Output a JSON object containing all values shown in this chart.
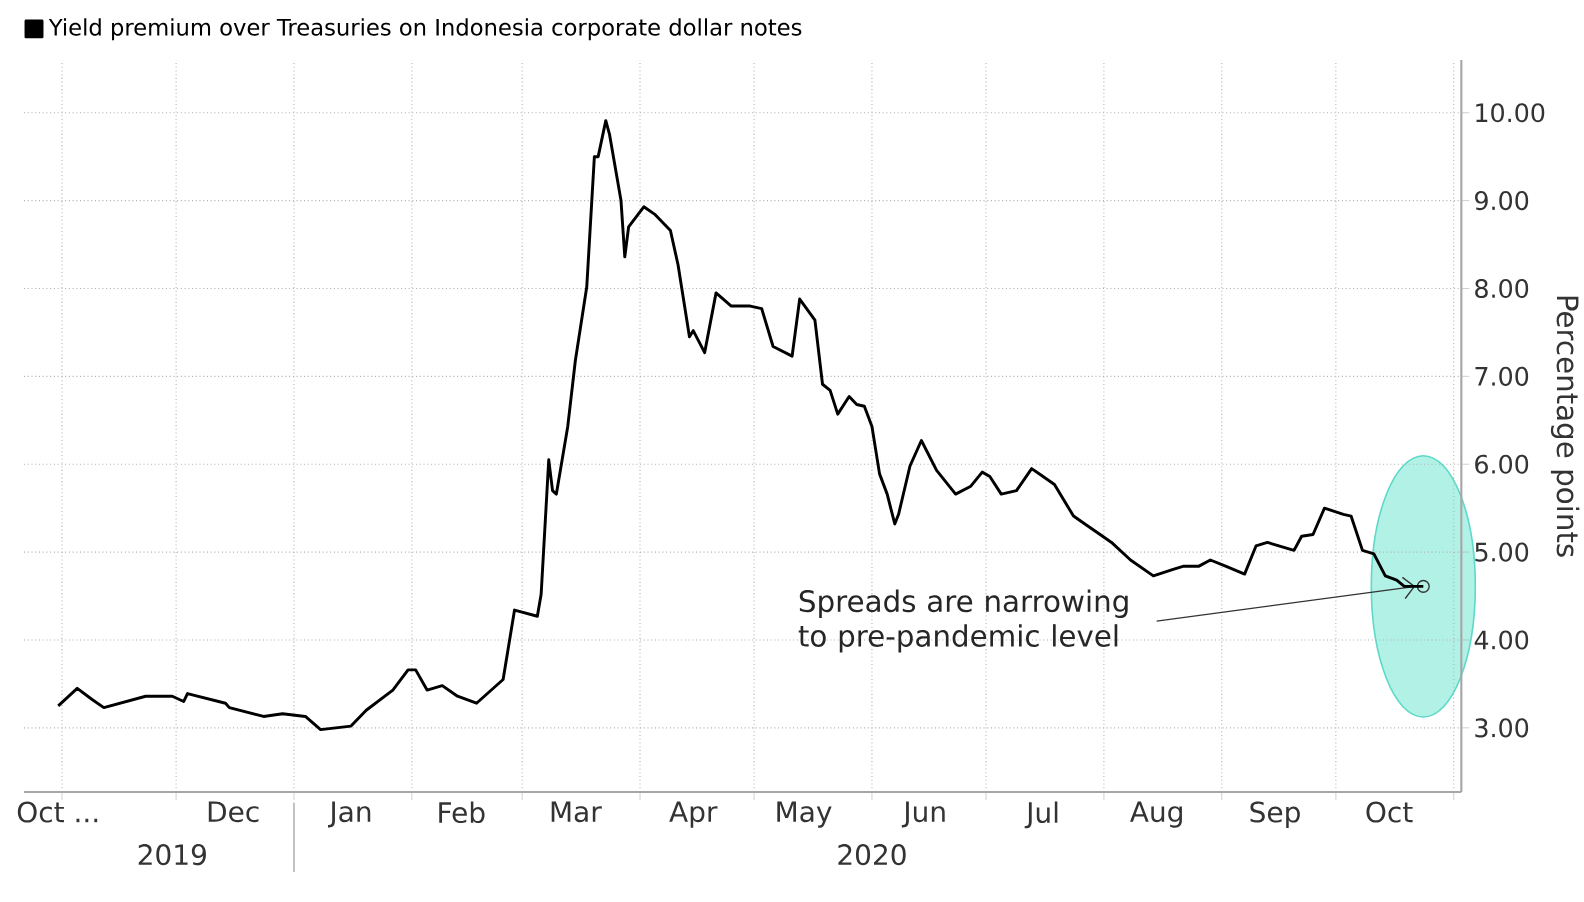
{
  "chart_data": {
    "type": "line",
    "xlim": [
      "2019-10-22",
      "2020-11-03"
    ],
    "ylim": [
      2.27,
      10.6
    ],
    "ylabel": "Percentage points",
    "xticks": [
      {
        "value": "2019-11-01",
        "label": null
      },
      {
        "value": "2019-12-01",
        "label": null
      },
      {
        "value": "2020-01-01",
        "label": null
      },
      {
        "value": "2020-02-01",
        "label": null
      },
      {
        "value": "2020-03-01",
        "label": null
      },
      {
        "value": "2020-04-01",
        "label": null
      },
      {
        "value": "2020-05-01",
        "label": null
      },
      {
        "value": "2020-06-01",
        "label": null
      },
      {
        "value": "2020-07-01",
        "label": null
      },
      {
        "value": "2020-08-01",
        "label": null
      },
      {
        "value": "2020-09-01",
        "label": null
      },
      {
        "value": "2020-10-01",
        "label": null
      },
      {
        "value": "2020-11-01",
        "label": null
      },
      {
        "value": "2019-10-31",
        "label": "Oct ..."
      },
      {
        "value": "2019-12-16",
        "label": "Dec"
      },
      {
        "value": "2020-01-16",
        "label": "Jan"
      },
      {
        "value": "2020-02-14",
        "label": "Feb"
      },
      {
        "value": "2020-03-15",
        "label": "Mar"
      },
      {
        "value": "2020-04-15",
        "label": "Apr"
      },
      {
        "value": "2020-05-14",
        "label": "May"
      },
      {
        "value": "2020-06-15",
        "label": "Jun"
      },
      {
        "value": "2020-07-16",
        "label": "Jul"
      },
      {
        "value": "2020-08-15",
        "label": "Aug"
      },
      {
        "value": "2020-09-15",
        "label": "Sep"
      },
      {
        "value": "2020-10-15",
        "label": "Oct"
      }
    ],
    "x2lim": [
      "2019-10-22",
      "2020-11-03"
    ],
    "x2ticks": [
      {
        "value": "2019-11-30",
        "label": "2019"
      },
      {
        "value": "2020-01-01",
        "label": null
      },
      {
        "value": "2020-06-01",
        "label": "2020"
      }
    ],
    "yticks": [
      {
        "value": 3,
        "label": "3.00"
      },
      {
        "value": 4,
        "label": "4.00"
      },
      {
        "value": 5,
        "label": "5.00"
      },
      {
        "value": 6,
        "label": "6.00"
      },
      {
        "value": 7,
        "label": "7.00"
      },
      {
        "value": 8,
        "label": "8.00"
      },
      {
        "value": 9,
        "label": "9.00"
      },
      {
        "value": 10,
        "label": "10.00"
      }
    ],
    "grid": true,
    "legend": "top left",
    "line_style": "solid",
    "annotations": [
      {
        "text": "Spreads are narrowing to pre-pandemic level",
        "x": "2020-10-24",
        "y": 4.61
      }
    ],
    "series": [
      {
        "name": "Yield premium over Treasuries on Indonesia corporate dollar notes",
        "color": "#000000",
        "x": [
          "2019-10-31",
          "2019-11-05",
          "2019-11-09",
          "2019-11-12",
          "2019-11-23",
          "2019-11-30",
          "2019-12-03",
          "2019-12-04",
          "2019-12-14",
          "2019-12-15",
          "2019-12-24",
          "2019-12-29",
          "2020-01-04",
          "2020-01-08",
          "2020-01-16",
          "2020-01-20",
          "2020-01-27",
          "2020-01-31",
          "2020-02-02",
          "2020-02-05",
          "2020-02-09",
          "2020-02-13",
          "2020-02-18",
          "2020-02-25",
          "2020-02-28",
          "2020-03-05",
          "2020-03-06",
          "2020-03-08",
          "2020-03-09",
          "2020-03-10",
          "2020-03-13",
          "2020-03-15",
          "2020-03-18",
          "2020-03-20",
          "2020-03-21",
          "2020-03-23",
          "2020-03-24",
          "2020-03-27",
          "2020-03-28",
          "2020-03-29",
          "2020-04-02",
          "2020-04-05",
          "2020-04-09",
          "2020-04-11",
          "2020-04-14",
          "2020-04-15",
          "2020-04-18",
          "2020-04-21",
          "2020-04-25",
          "2020-04-30",
          "2020-05-03",
          "2020-05-06",
          "2020-05-11",
          "2020-05-13",
          "2020-05-17",
          "2020-05-19",
          "2020-05-21",
          "2020-05-23",
          "2020-05-26",
          "2020-05-28",
          "2020-05-30",
          "2020-06-01",
          "2020-06-03",
          "2020-06-05",
          "2020-06-07",
          "2020-06-08",
          "2020-06-11",
          "2020-06-14",
          "2020-06-18",
          "2020-06-23",
          "2020-06-27",
          "2020-06-30",
          "2020-07-02",
          "2020-07-05",
          "2020-07-09",
          "2020-07-13",
          "2020-07-16",
          "2020-07-19",
          "2020-07-24",
          "2020-07-27",
          "2020-07-31",
          "2020-08-03",
          "2020-08-08",
          "2020-08-14",
          "2020-08-19",
          "2020-08-22",
          "2020-08-26",
          "2020-08-29",
          "2020-09-02",
          "2020-09-07",
          "2020-09-10",
          "2020-09-13",
          "2020-09-20",
          "2020-09-22",
          "2020-09-25",
          "2020-09-28",
          "2020-10-03",
          "2020-10-05",
          "2020-10-08",
          "2020-10-11",
          "2020-10-14",
          "2020-10-17",
          "2020-10-19",
          "2020-10-24"
        ],
        "values": [
          3.25,
          3.45,
          3.32,
          3.23,
          3.36,
          3.36,
          3.3,
          3.39,
          3.28,
          3.23,
          3.13,
          3.16,
          3.13,
          2.98,
          3.02,
          3.2,
          3.43,
          3.66,
          3.66,
          3.43,
          3.48,
          3.36,
          3.28,
          3.55,
          4.34,
          4.27,
          4.52,
          6.05,
          5.7,
          5.66,
          6.43,
          7.18,
          8.02,
          9.5,
          9.5,
          9.91,
          9.75,
          9.0,
          8.36,
          8.7,
          8.93,
          8.84,
          8.66,
          8.27,
          7.45,
          7.52,
          7.27,
          7.95,
          7.8,
          7.8,
          7.77,
          7.34,
          7.23,
          7.88,
          7.64,
          6.91,
          6.84,
          6.57,
          6.77,
          6.68,
          6.66,
          6.43,
          5.89,
          5.66,
          5.32,
          5.43,
          5.98,
          6.27,
          5.93,
          5.66,
          5.75,
          5.91,
          5.86,
          5.66,
          5.7,
          5.95,
          5.86,
          5.77,
          5.41,
          5.32,
          5.2,
          5.11,
          4.91,
          4.73,
          4.8,
          4.84,
          4.84,
          4.91,
          4.84,
          4.75,
          5.07,
          5.11,
          5.02,
          5.18,
          5.2,
          5.5,
          5.43,
          5.41,
          5.02,
          4.98,
          4.73,
          4.68,
          4.61,
          4.61
        ]
      }
    ]
  }
}
